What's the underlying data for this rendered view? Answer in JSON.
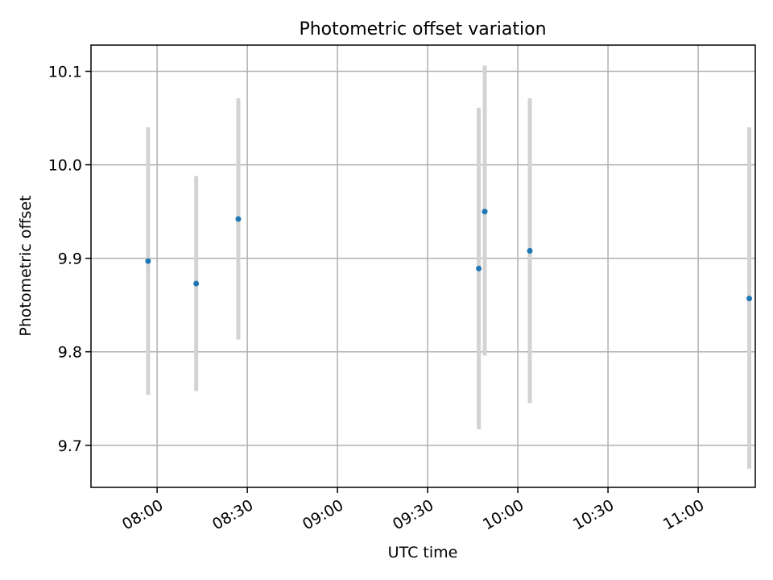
{
  "chart_data": {
    "type": "scatter",
    "title": "Photometric offset variation",
    "xlabel": "UTC time",
    "ylabel": "Photometric offset",
    "x_axis_type": "time",
    "xlim": [
      "07:38",
      "11:19"
    ],
    "ylim": [
      9.655,
      10.128
    ],
    "x_ticks": [
      "08:00",
      "08:30",
      "09:00",
      "09:30",
      "10:00",
      "10:30",
      "11:00"
    ],
    "y_ticks": [
      9.7,
      9.8,
      9.9,
      10.0,
      10.1
    ],
    "y_tick_labels": [
      "9.7",
      "9.8",
      "9.9",
      "10.0",
      "10.1"
    ],
    "grid": true,
    "legend": "none",
    "point_color": "#1f77b4",
    "errorbar_color": "#d3d3d3",
    "points": [
      {
        "x": "07:57",
        "y": 9.897,
        "ylow": 9.754,
        "yhigh": 10.04
      },
      {
        "x": "08:13",
        "y": 9.873,
        "ylow": 9.758,
        "yhigh": 9.988
      },
      {
        "x": "08:27",
        "y": 9.942,
        "ylow": 9.813,
        "yhigh": 10.071
      },
      {
        "x": "09:47",
        "y": 9.889,
        "ylow": 9.717,
        "yhigh": 10.061
      },
      {
        "x": "09:49",
        "y": 9.95,
        "ylow": 9.796,
        "yhigh": 10.106
      },
      {
        "x": "10:04",
        "y": 9.908,
        "ylow": 9.745,
        "yhigh": 10.071
      },
      {
        "x": "11:17",
        "y": 9.857,
        "ylow": 9.675,
        "yhigh": 10.04
      }
    ]
  }
}
